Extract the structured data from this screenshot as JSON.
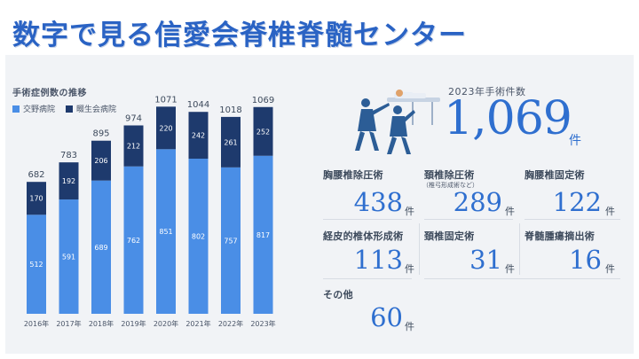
{
  "page": {
    "title": "数字で見る信愛会脊椎脊髄センター"
  },
  "chart_data": {
    "type": "bar",
    "stacked": true,
    "title": "手術症例数の推移",
    "categories": [
      "2016年",
      "2017年",
      "2018年",
      "2019年",
      "2020年",
      "2021年",
      "2022年",
      "2023年"
    ],
    "series": [
      {
        "name": "交野病院",
        "values": [
          512,
          591,
          689,
          762,
          851,
          802,
          757,
          817
        ],
        "color": "#4a8ee6"
      },
      {
        "name": "畷生会病院",
        "values": [
          170,
          192,
          206,
          212,
          220,
          242,
          261,
          252
        ],
        "color": "#1e3a6d"
      }
    ],
    "totals": [
      682,
      783,
      895,
      974,
      1071,
      1044,
      1018,
      1069
    ],
    "ylim": [
      0,
      1100
    ],
    "grid": false,
    "legend_position": "top-left"
  },
  "summary": {
    "caption": "2023年手術件数",
    "total": "1,069",
    "unit": "件"
  },
  "stats": [
    {
      "label": "胸腰椎除圧術",
      "sub": "",
      "value": "438",
      "unit": "件"
    },
    {
      "label": "頚椎除圧術",
      "sub": "（椎弓形成術など）",
      "value": "289",
      "unit": "件"
    },
    {
      "label": "胸腰椎固定術",
      "sub": "",
      "value": "122",
      "unit": "件"
    },
    {
      "label": "経皮的椎体形成術",
      "sub": "",
      "value": "113",
      "unit": "件"
    },
    {
      "label": "頚椎固定術",
      "sub": "",
      "value": "31",
      "unit": "件"
    },
    {
      "label": "脊髄腫瘍摘出術",
      "sub": "",
      "value": "16",
      "unit": "件"
    },
    {
      "label": "その他",
      "sub": "",
      "value": "60",
      "unit": "件"
    }
  ],
  "colors": {
    "accent": "#2f6fcf",
    "title": "#2a63c4",
    "panel": "#f1f3f6",
    "figure": "#2c5d96"
  }
}
